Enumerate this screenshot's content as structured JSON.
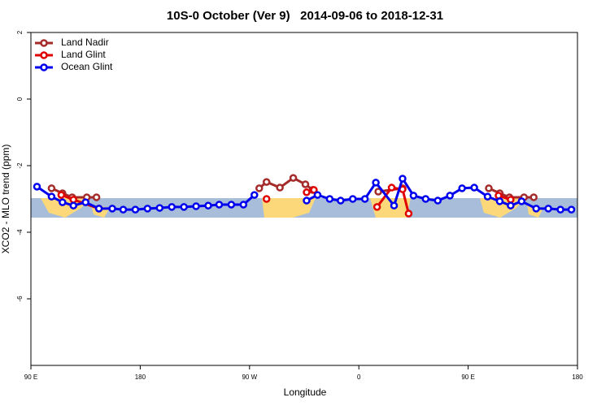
{
  "chart_data": {
    "type": "line",
    "title": "10S-0 October (Ver 9)   2014-09-06 to 2018-12-31",
    "xlabel": "Longitude",
    "ylabel": "XCO2 - MLO trend (ppm)",
    "xlim": [
      90,
      540
    ],
    "xticks": [
      {
        "value": 90,
        "label": "90 E"
      },
      180,
      {
        "value": 270,
        "label": "90 W"
      },
      {
        "value": 360,
        "label": "0"
      },
      {
        "value": 450,
        "label": "90 E"
      },
      {
        "value": 540,
        "label": "180"
      }
    ],
    "ylim": [
      -8,
      2
    ],
    "yticks": [
      2,
      0,
      -2,
      -4,
      -6
    ],
    "legend": "top-left",
    "series": [
      {
        "name": "Land Nadir",
        "color": "#a52a2a",
        "x": [
          107,
          116,
          124,
          136,
          144,
          200,
          278,
          284,
          295,
          306,
          316,
          322,
          350,
          376,
          396,
          450,
          467,
          476,
          484,
          496,
          504
        ],
        "values": [
          -2.68,
          -2.83,
          -2.95,
          -2.95,
          -2.95,
          null,
          -2.68,
          -2.49,
          -2.66,
          -2.37,
          -2.56,
          -2.73,
          null,
          -2.78,
          -2.68,
          null,
          -2.68,
          -2.83,
          -2.95,
          -2.95,
          -2.95
        ]
      },
      {
        "name": "Land Glint",
        "color": "#e00000",
        "x": [
          115,
          125,
          146,
          200,
          284,
          300,
          317,
          323,
          350,
          375,
          387,
          396,
          401,
          450,
          475,
          485
        ],
        "values": [
          -2.88,
          -3.02,
          -3.29,
          null,
          -3.0,
          null,
          -2.8,
          -2.73,
          null,
          -3.24,
          -2.66,
          -2.71,
          -3.44,
          null,
          -2.9,
          -3.02
        ]
      },
      {
        "name": "Ocean Glint",
        "color": "#0000ee",
        "x": [
          95,
          107,
          116,
          125,
          135,
          146,
          157,
          166,
          176,
          186,
          196,
          206,
          216,
          226,
          236,
          245,
          255,
          265,
          274,
          295,
          317,
          326,
          336,
          345,
          355,
          365,
          374,
          389,
          396,
          405,
          415,
          425,
          435,
          445,
          455,
          466,
          476,
          485,
          494,
          506,
          516,
          526,
          535
        ],
        "values": [
          -2.63,
          -2.93,
          -3.1,
          -3.2,
          -3.1,
          -3.29,
          -3.29,
          -3.32,
          -3.32,
          -3.29,
          -3.27,
          -3.24,
          -3.24,
          -3.22,
          -3.2,
          -3.17,
          -3.17,
          -3.17,
          -2.88,
          null,
          -3.05,
          -2.88,
          -3.0,
          -3.05,
          -3.0,
          -3.0,
          -2.51,
          -3.2,
          -2.39,
          -2.9,
          -3.0,
          -3.05,
          -2.9,
          -2.68,
          -2.66,
          -2.93,
          -3.07,
          -3.2,
          -3.07,
          -3.29,
          -3.29,
          -3.32,
          -3.32
        ]
      }
    ]
  }
}
